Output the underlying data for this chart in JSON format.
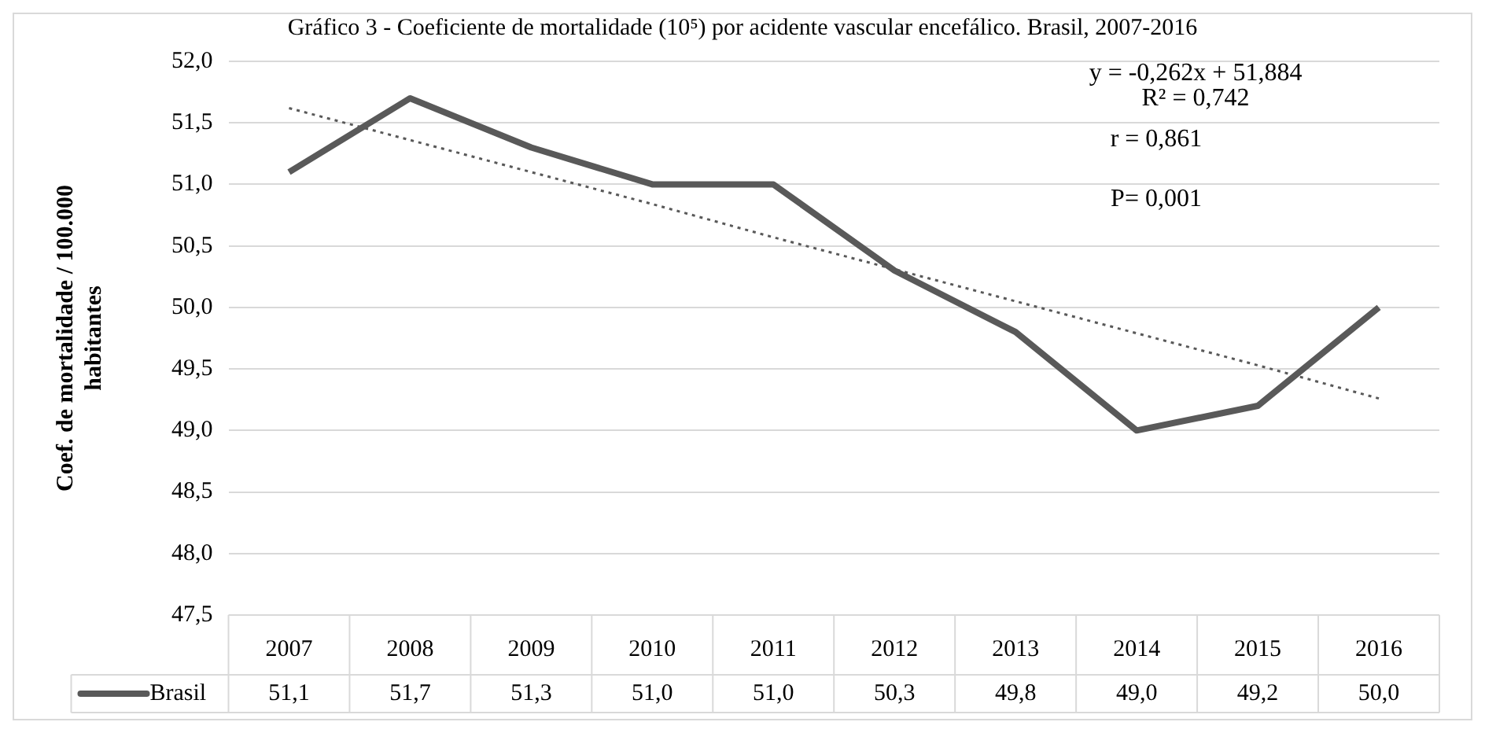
{
  "chart_data": {
    "type": "line",
    "title": "Gráfico 3 - Coeficiente de mortalidade (10⁵) por acidente vascular encefálico. Brasil, 2007-2016",
    "ylabel": "Coef. de mortalidade / 100.000 habitantes",
    "categories": [
      "2007",
      "2008",
      "2009",
      "2010",
      "2011",
      "2012",
      "2013",
      "2014",
      "2015",
      "2016"
    ],
    "series": [
      {
        "name": "Brasil",
        "color": "#595959",
        "values": [
          51.1,
          51.7,
          51.3,
          51.0,
          51.0,
          50.3,
          49.8,
          49.0,
          49.2,
          50.0
        ],
        "value_labels": [
          "51,1",
          "51,7",
          "51,3",
          "51,0",
          "51,0",
          "50,3",
          "49,8",
          "49,0",
          "49,2",
          "50,0"
        ]
      },
      {
        "type": "line",
        "color": "#595959",
        "line_style": "dotted",
        "values": [
          51.62,
          51.36,
          51.1,
          50.84,
          50.57,
          50.31,
          50.05,
          49.79,
          49.53,
          49.26
        ]
      }
    ],
    "ylim": [
      47.5,
      52
    ],
    "yticks": [
      {
        "value": 47.5,
        "label": "47,5"
      },
      {
        "value": 48,
        "label": "48,0"
      },
      {
        "value": 48.5,
        "label": "48,5"
      },
      {
        "value": 49,
        "label": "49,0"
      },
      {
        "value": 49.5,
        "label": "49,5"
      },
      {
        "value": 50,
        "label": "50,0"
      },
      {
        "value": 50.5,
        "label": "50,5"
      },
      {
        "value": 51,
        "label": "51,0"
      },
      {
        "value": 51.5,
        "label": "51,5"
      },
      {
        "value": 52,
        "label": "52,0"
      }
    ],
    "annotations": [
      "y = -0,262x + 51,884",
      "R² = 0,742",
      "r = 0,861",
      "P= 0,001"
    ],
    "grid": "y",
    "legend": "bottom left",
    "marker": "none",
    "line_style": "solid"
  }
}
